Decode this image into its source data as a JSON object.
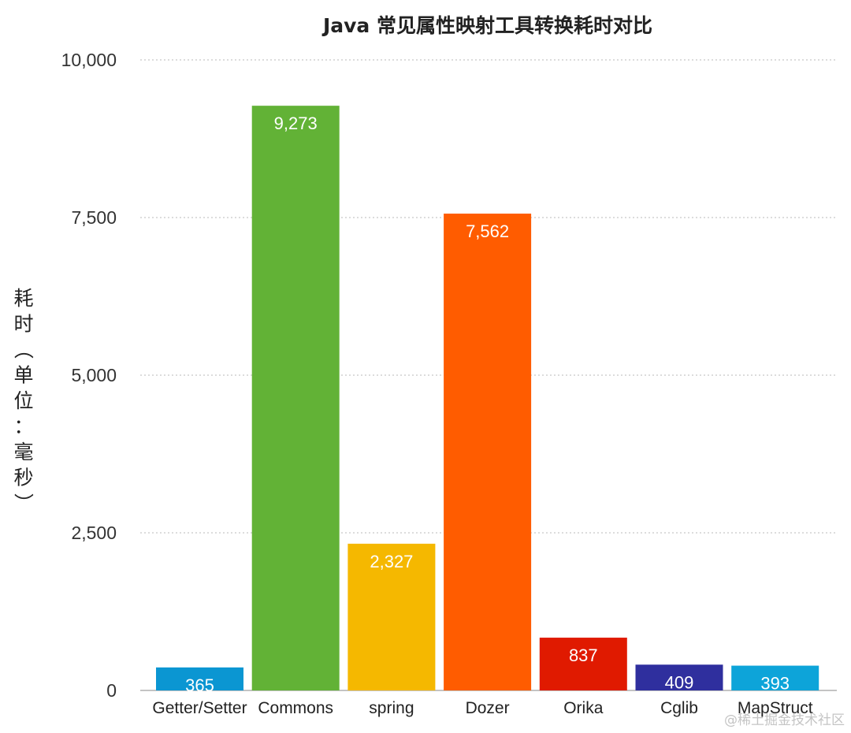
{
  "chart_data": {
    "type": "bar",
    "title": "Java 常见属性映射工具转换耗时对比",
    "xlabel": "",
    "ylabel": "耗时（单位：毫秒）",
    "categories": [
      "Getter/Setter",
      "Commons",
      "spring",
      "Dozer",
      "Orika",
      "Cglib",
      "MapStruct"
    ],
    "values": [
      365,
      9273,
      2327,
      7562,
      837,
      409,
      393
    ],
    "value_labels": [
      "365",
      "9,273",
      "2,327",
      "7,562",
      "837",
      "409",
      "393"
    ],
    "colors": [
      "#0b96d2",
      "#62b236",
      "#f5b800",
      "#ff5c00",
      "#e01a00",
      "#2f2f9e",
      "#0da4d9"
    ],
    "ylim": [
      0,
      10000
    ],
    "yticks": [
      0,
      2500,
      5000,
      7500,
      10000
    ],
    "ytick_labels": [
      "0",
      "2,500",
      "5,000",
      "7,500",
      "10,000"
    ],
    "grid": true,
    "legend": "none"
  },
  "watermark": "@稀土掘金技术社区"
}
